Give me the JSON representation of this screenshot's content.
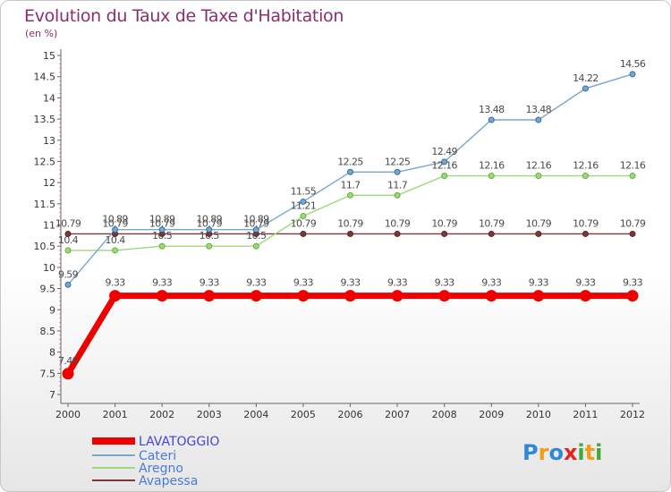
{
  "chart_data": {
    "type": "line",
    "title": "Evolution du Taux de Taxe d'Habitation",
    "ylabel": "(en %)",
    "xlabel": "",
    "ylim": [
      7,
      15
    ],
    "y_ticks": [
      "7",
      "7.5",
      "8",
      "8.5",
      "9",
      "9.5",
      "10",
      "10.5",
      "11",
      "11.5",
      "12",
      "12.5",
      "13",
      "13.5",
      "14",
      "14.5",
      "15"
    ],
    "x": [
      "2000",
      "2001",
      "2002",
      "2003",
      "2004",
      "2005",
      "2006",
      "2007",
      "2008",
      "2009",
      "2010",
      "2011",
      "2012"
    ],
    "grid": false,
    "legend_position": "bottom-left",
    "series": [
      {
        "name": "LAVATOGGIO",
        "color": "#ee0000",
        "values": [
          7.49,
          9.33,
          9.33,
          9.33,
          9.33,
          9.33,
          9.33,
          9.33,
          9.33,
          9.33,
          9.33,
          9.33,
          9.33
        ],
        "labels": [
          "7.49",
          "9.33",
          "9.33",
          "9.33",
          "9.33",
          "9.33",
          "9.33",
          "9.33",
          "9.33",
          "9.33",
          "9.33",
          "9.33",
          "9.33"
        ]
      },
      {
        "name": "Cateri",
        "color": "#7aa6cc",
        "values": [
          9.59,
          10.89,
          10.89,
          10.89,
          10.89,
          11.55,
          12.25,
          12.25,
          12.49,
          13.48,
          13.48,
          14.22,
          14.56
        ],
        "labels": [
          "9.59",
          "10.89",
          "10.89",
          "10.89",
          "10.89",
          "11.55",
          "12.25",
          "12.25",
          "12.49",
          "13.48",
          "13.48",
          "14.22",
          "14.56"
        ]
      },
      {
        "name": "Aregno",
        "color": "#9ed87a",
        "values": [
          10.4,
          10.4,
          10.5,
          10.5,
          10.5,
          11.21,
          11.7,
          11.7,
          12.16,
          12.16,
          12.16,
          12.16,
          12.16
        ],
        "labels": [
          "10.4",
          "10.4",
          "10.5",
          "10.5",
          "10.5",
          "11.21",
          "11.7",
          "11.7",
          "12.16",
          "12.16",
          "12.16",
          "12.16",
          "12.16"
        ]
      },
      {
        "name": "Avapessa",
        "color": "#7a3838",
        "values": [
          10.79,
          10.79,
          10.79,
          10.79,
          10.79,
          10.79,
          10.79,
          10.79,
          10.79,
          10.79,
          10.79,
          10.79,
          10.79
        ],
        "labels": [
          "10.79",
          "10.79",
          "10.79",
          "10.79",
          "10.79",
          "10.79",
          "10.79",
          "10.79",
          "10.79",
          "10.79",
          "10.79",
          "10.79",
          "10.79"
        ]
      }
    ]
  },
  "legend": {
    "lavatoggio_color": "#4444dd",
    "other_color": "#4a7bd6"
  },
  "logo": {
    "text": "Proxiti",
    "letters": [
      "P",
      "r",
      "o",
      "x",
      "i",
      "t",
      "i"
    ],
    "colors": [
      "#2f88d8",
      "#f39a1f",
      "#2f88d8",
      "#e4221e",
      "#3fa93a",
      "#f39a1f",
      "#3fa93a"
    ]
  }
}
